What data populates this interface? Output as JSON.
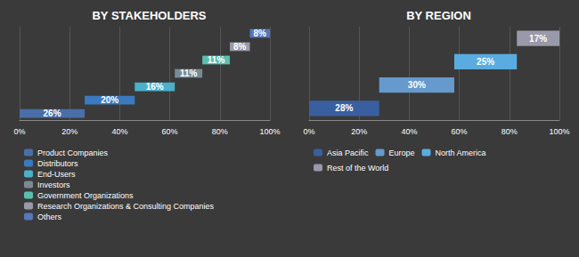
{
  "chart_data": [
    {
      "type": "bar",
      "orientation": "horizontal",
      "stacked": true,
      "title": "BY STAKEHOLDERS",
      "categories": [
        null,
        null,
        null,
        null,
        null,
        null,
        null
      ],
      "series": [
        {
          "name": "Product Companies",
          "color": "#4a6fa8",
          "values": [
            26,
            null,
            null,
            null,
            null,
            null,
            null
          ],
          "value_labels": [
            "26%",
            null,
            null,
            null,
            null,
            null,
            null
          ]
        },
        {
          "name": "Distributors",
          "color": "#3a7abf",
          "values": [
            null,
            20,
            null,
            null,
            null,
            null,
            null
          ],
          "value_labels": [
            null,
            "20%",
            null,
            null,
            null,
            null,
            null
          ]
        },
        {
          "name": "End-Users",
          "color": "#4ab0cc",
          "values": [
            null,
            null,
            16,
            null,
            null,
            null,
            null
          ],
          "value_labels": [
            null,
            null,
            "16%",
            null,
            null,
            null,
            null
          ]
        },
        {
          "name": "Investors",
          "color": "#7a8a95",
          "values": [
            null,
            null,
            null,
            11,
            null,
            null,
            null
          ],
          "value_labels": [
            null,
            null,
            null,
            "11%",
            null,
            null,
            null
          ]
        },
        {
          "name": "Government Organizations",
          "color": "#5bbfb0",
          "values": [
            null,
            null,
            null,
            null,
            11,
            null,
            null
          ],
          "value_labels": [
            null,
            null,
            null,
            null,
            "11%",
            null,
            null
          ]
        },
        {
          "name": "Research Organizations & Consulting Companies",
          "color": "#9a9aaa",
          "values": [
            null,
            null,
            null,
            null,
            null,
            8,
            null
          ],
          "value_labels": [
            null,
            null,
            null,
            null,
            null,
            "8%",
            null
          ]
        },
        {
          "name": "Others",
          "color": "#5577bb",
          "values": [
            null,
            null,
            null,
            null,
            null,
            null,
            8
          ],
          "value_labels": [
            null,
            null,
            null,
            null,
            null,
            null,
            "8%"
          ]
        }
      ],
      "xlim": [
        0,
        100
      ],
      "xticks": [
        {
          "value": 0,
          "label": "0%"
        },
        {
          "value": 20,
          "label": "20%"
        },
        {
          "value": 40,
          "label": "40%"
        },
        {
          "value": 60,
          "label": "60%"
        },
        {
          "value": 80,
          "label": "80%"
        },
        {
          "value": 100,
          "label": "100%"
        }
      ],
      "grid": true,
      "data_labels": true,
      "tick_labels": "x",
      "legend": "bottom"
    },
    {
      "type": "bar",
      "orientation": "horizontal",
      "stacked": true,
      "title": "BY REGION",
      "categories": [
        null,
        null,
        null,
        null
      ],
      "series": [
        {
          "name": "Asia Pacific",
          "color": "#3a5fa0",
          "values": [
            28,
            null,
            null,
            null
          ],
          "value_labels": [
            "28%",
            null,
            null,
            null
          ]
        },
        {
          "name": "Europe",
          "color": "#6699cc",
          "values": [
            null,
            30,
            null,
            null
          ],
          "value_labels": [
            null,
            "30%",
            null,
            null
          ]
        },
        {
          "name": "North America",
          "color": "#5aace0",
          "values": [
            null,
            null,
            25,
            null
          ],
          "value_labels": [
            null,
            null,
            "25%",
            null
          ]
        },
        {
          "name": "Rest of the World",
          "color": "#9999aa",
          "values": [
            null,
            null,
            null,
            17
          ],
          "value_labels": [
            null,
            null,
            null,
            "17%"
          ]
        }
      ],
      "xlim": [
        0,
        100
      ],
      "xticks": [
        {
          "value": 0,
          "label": "0%"
        },
        {
          "value": 20,
          "label": "20%"
        },
        {
          "value": 40,
          "label": "40%"
        },
        {
          "value": 60,
          "label": "60%"
        },
        {
          "value": 80,
          "label": "80%"
        },
        {
          "value": 100,
          "label": "100%"
        }
      ],
      "grid": true,
      "data_labels": true,
      "tick_labels": "x",
      "legend": "bottom"
    }
  ]
}
